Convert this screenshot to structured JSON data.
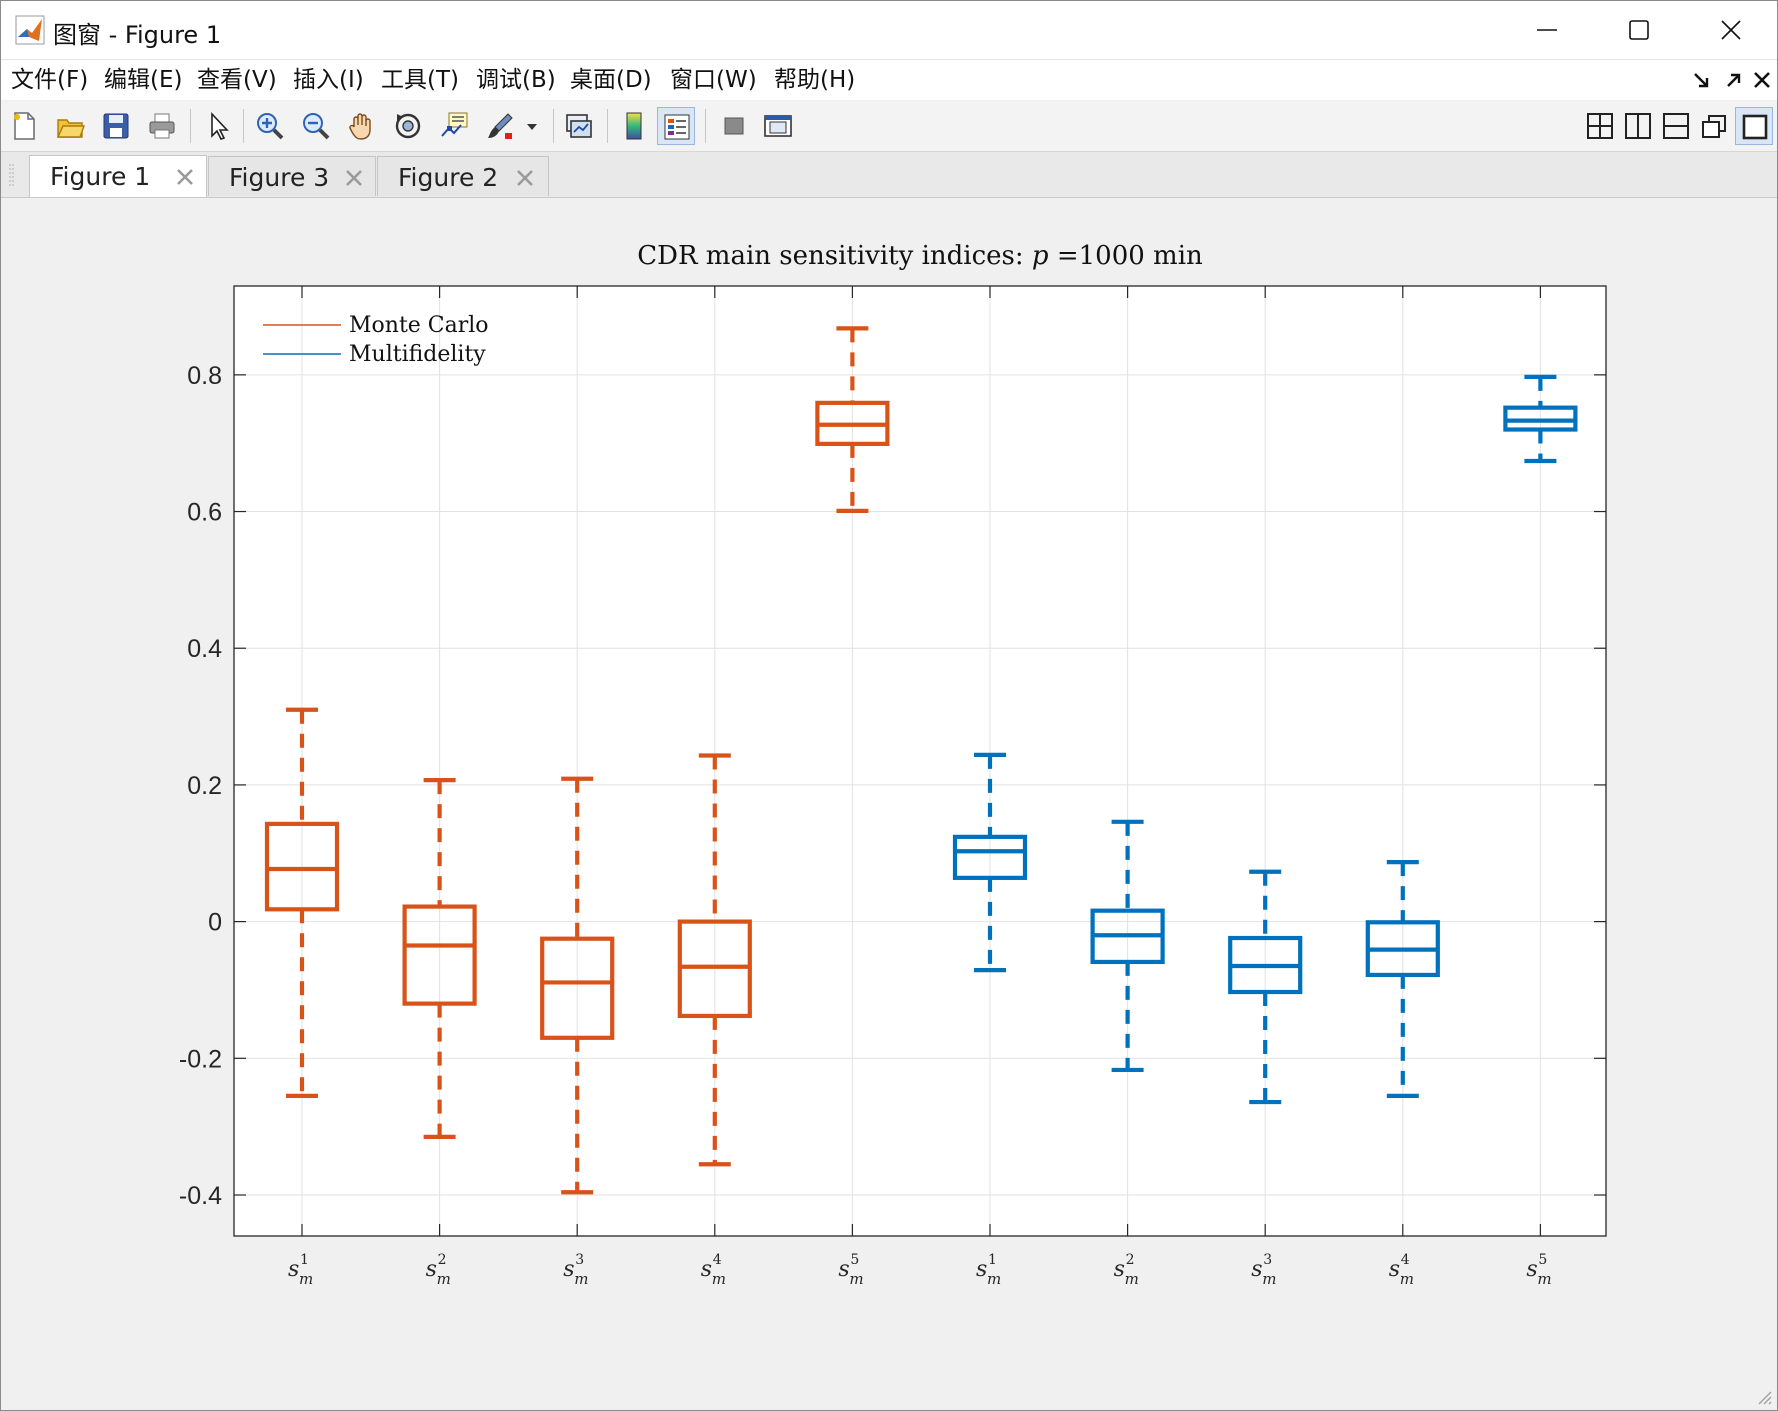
{
  "window": {
    "title": "图窗 - Figure 1"
  },
  "menu": {
    "items": [
      "文件(F)",
      "编辑(E)",
      "查看(V)",
      "插入(I)",
      "工具(T)",
      "调试(B)",
      "桌面(D)",
      "窗口(W)",
      "帮助(H)"
    ]
  },
  "toolbar": {
    "left_icons": [
      "new-figure-icon",
      "open-icon",
      "save-icon",
      "print-icon",
      "pointer-icon",
      "zoom-in-icon",
      "zoom-out-icon",
      "pan-icon",
      "rotate-icon",
      "data-cursor-icon",
      "brush-icon",
      "link-plot-icon",
      "colorbar-icon",
      "legend-icon",
      "hide-plot-tools-icon",
      "show-plot-tools-icon"
    ],
    "right_icons": [
      "tile-layout-icon",
      "left-right-layout-icon",
      "top-bottom-layout-icon",
      "float-icon",
      "maximize-icon"
    ]
  },
  "tabs": [
    {
      "label": "Figure 1",
      "active": true
    },
    {
      "label": "Figure 3",
      "active": false
    },
    {
      "label": "Figure 2",
      "active": false
    }
  ],
  "colors": {
    "monte_carlo": "#d95319",
    "multifidelity": "#0072bd",
    "grid": "#e2e2e2",
    "axes_bg": "#ffffff"
  },
  "chart_data": {
    "type": "box",
    "title": "CDR main sensitivity indices: p =1000 min",
    "categories": [
      "s_m^1",
      "s_m^2",
      "s_m^3",
      "s_m^4",
      "s_m^5",
      "s_m^1",
      "s_m^2",
      "s_m^3",
      "s_m^4",
      "s_m^5"
    ],
    "tick_base": "s",
    "tick_sub": "m",
    "tick_sups": [
      "1",
      "2",
      "3",
      "4",
      "5",
      "1",
      "2",
      "3",
      "4",
      "5"
    ],
    "ylim": [
      -0.46,
      0.93
    ],
    "yticks": [
      -0.4,
      -0.2,
      0,
      0.2,
      0.4,
      0.6,
      0.8
    ],
    "ytick_labels": [
      "-0.4",
      "-0.2",
      "0",
      "0.2",
      "0.4",
      "0.6",
      "0.8"
    ],
    "grid": true,
    "legend_position": "top-left",
    "series": [
      {
        "name": "Monte Carlo",
        "positions": [
          1,
          2,
          3,
          4,
          5
        ],
        "boxes": [
          {
            "whisker_low": -0.255,
            "q1": 0.018,
            "median": 0.077,
            "q3": 0.143,
            "whisker_high": 0.31
          },
          {
            "whisker_low": -0.315,
            "q1": -0.12,
            "median": -0.035,
            "q3": 0.022,
            "whisker_high": 0.207
          },
          {
            "whisker_low": -0.396,
            "q1": -0.17,
            "median": -0.089,
            "q3": -0.025,
            "whisker_high": 0.209
          },
          {
            "whisker_low": -0.355,
            "q1": -0.138,
            "median": -0.066,
            "q3": 0.0,
            "whisker_high": 0.243
          },
          {
            "whisker_low": 0.601,
            "q1": 0.699,
            "median": 0.727,
            "q3": 0.759,
            "whisker_high": 0.868
          }
        ]
      },
      {
        "name": "Multifidelity",
        "positions": [
          6,
          7,
          8,
          9,
          10
        ],
        "boxes": [
          {
            "whisker_low": -0.071,
            "q1": 0.064,
            "median": 0.103,
            "q3": 0.124,
            "whisker_high": 0.244
          },
          {
            "whisker_low": -0.217,
            "q1": -0.059,
            "median": -0.02,
            "q3": 0.016,
            "whisker_high": 0.146
          },
          {
            "whisker_low": -0.264,
            "q1": -0.103,
            "median": -0.065,
            "q3": -0.024,
            "whisker_high": 0.073
          },
          {
            "whisker_low": -0.255,
            "q1": -0.078,
            "median": -0.041,
            "q3": -0.001,
            "whisker_high": 0.087
          },
          {
            "whisker_low": 0.674,
            "q1": 0.72,
            "median": 0.733,
            "q3": 0.752,
            "whisker_high": 0.797
          }
        ]
      }
    ]
  }
}
